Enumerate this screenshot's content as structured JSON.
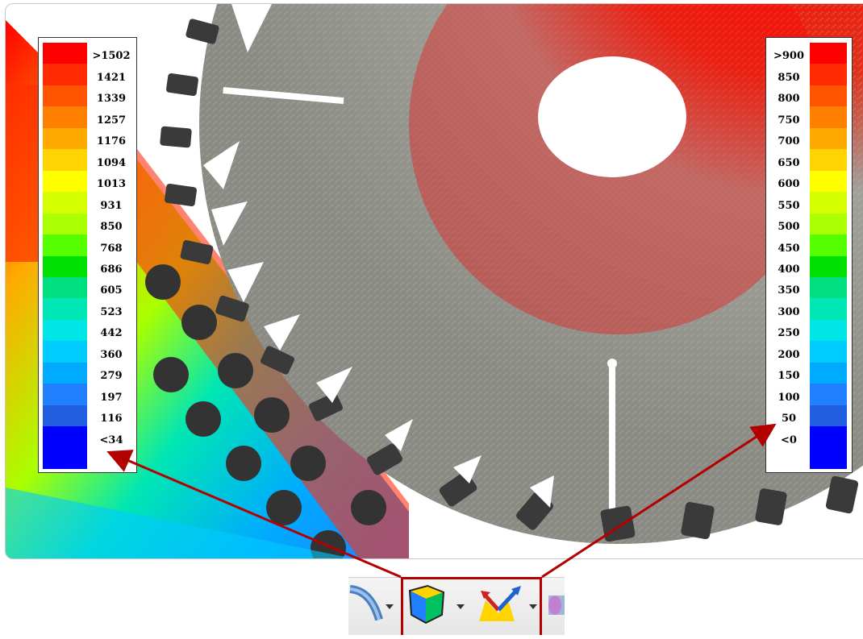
{
  "legend_left": {
    "labels": [
      ">1502",
      "1421",
      "1339",
      "1257",
      "1176",
      "1094",
      "1013",
      "931",
      "850",
      "768",
      "686",
      "605",
      "523",
      "442",
      "360",
      "279",
      "197",
      "116",
      "<34"
    ],
    "colors": [
      "#ff0000",
      "#ff2a00",
      "#ff5500",
      "#ff8000",
      "#ffaa00",
      "#ffd400",
      "#ffff00",
      "#d4ff00",
      "#aaff00",
      "#55ff00",
      "#00e000",
      "#00e080",
      "#00e6b4",
      "#00e6e6",
      "#00ccff",
      "#00aaff",
      "#2080ff",
      "#2060e0",
      "#0000ff",
      "#0000ff"
    ]
  },
  "legend_right": {
    "labels": [
      ">900",
      "850",
      "800",
      "750",
      "700",
      "650",
      "600",
      "550",
      "500",
      "450",
      "400",
      "350",
      "300",
      "250",
      "200",
      "150",
      "100",
      "50",
      "<0"
    ],
    "colors": [
      "#ff0000",
      "#ff2a00",
      "#ff5500",
      "#ff8000",
      "#ffaa00",
      "#ffd400",
      "#ffff00",
      "#d4ff00",
      "#aaff00",
      "#55ff00",
      "#00e000",
      "#00e080",
      "#00e6b4",
      "#00e6e6",
      "#00ccff",
      "#00aaff",
      "#2080ff",
      "#2060e0",
      "#0000ff",
      "#0000ff"
    ]
  },
  "toolbar": {
    "items": [
      "sweep-tool-icon",
      "contour-plot-icon",
      "vector-plot-icon",
      "cylinder-tool-icon"
    ]
  },
  "accent_color": "#b30000"
}
